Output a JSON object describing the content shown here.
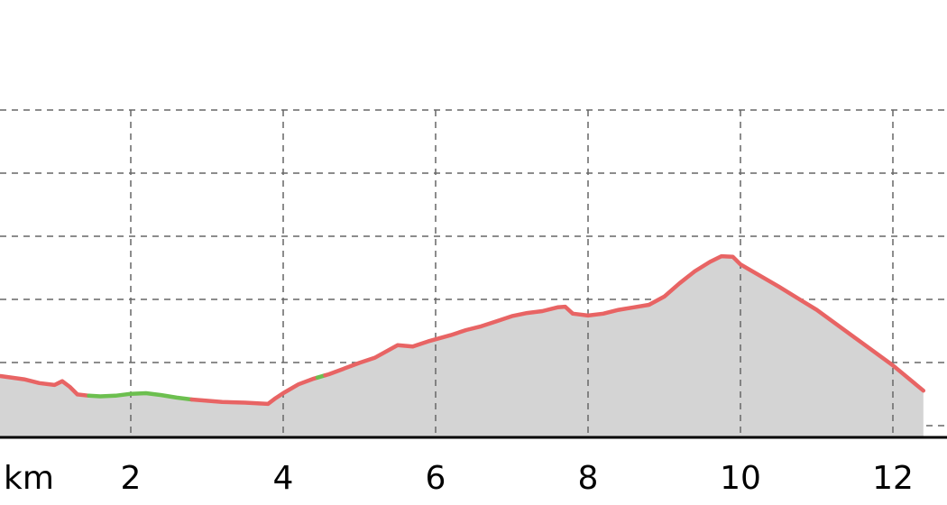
{
  "chart_data": {
    "type": "area",
    "title": "",
    "xlabel": "",
    "ylabel": "",
    "x_unit": "km",
    "xlim": [
      0.0,
      12.4
    ],
    "x_ticks": [
      2,
      4,
      6,
      8,
      10,
      12
    ],
    "x_tick_labels": [
      "2",
      "4",
      "6",
      "8",
      "10",
      "12"
    ],
    "y_gridlines": 6,
    "grid": "dashed",
    "fill_color": "#d4d4d4",
    "colors": {
      "primary_line": "#e86464",
      "secondary_segment": "#6cbf4f",
      "grid": "#666666",
      "axis": "#000000"
    },
    "segment_colors": [
      {
        "x_start": 0.0,
        "x_end": 1.45,
        "color": "primary_line"
      },
      {
        "x_start": 1.45,
        "x_end": 2.8,
        "color": "secondary_segment"
      },
      {
        "x_start": 2.8,
        "x_end": 4.45,
        "color": "primary_line"
      },
      {
        "x_start": 4.45,
        "x_end": 4.55,
        "color": "secondary_segment"
      },
      {
        "x_start": 4.55,
        "x_end": 12.4,
        "color": "primary_line"
      }
    ],
    "series": [
      {
        "x": [
          0.0,
          0.3,
          0.6,
          0.8,
          1.0,
          1.1,
          1.2,
          1.3,
          1.45,
          1.6,
          1.8,
          2.0,
          2.2,
          2.4,
          2.6,
          2.8,
          3.0,
          3.2,
          3.5,
          3.8,
          3.9,
          4.0,
          4.2,
          4.4,
          4.6,
          4.8,
          5.0,
          5.2,
          5.5,
          5.7,
          5.9,
          6.2,
          6.4,
          6.6,
          6.8,
          7.0,
          7.2,
          7.4,
          7.6,
          7.7,
          7.8,
          8.0,
          8.2,
          8.4,
          8.6,
          8.8,
          9.0,
          9.2,
          9.4,
          9.6,
          9.75,
          9.9,
          10.0,
          10.5,
          11.0,
          11.5,
          12.0,
          12.4
        ],
        "y": [
          27.9,
          27.7,
          27.2,
          26.6,
          26.3,
          26.9,
          26.0,
          24.8,
          24.6,
          24.5,
          24.6,
          24.9,
          25.0,
          24.7,
          24.3,
          24.0,
          23.8,
          23.6,
          23.5,
          23.3,
          24.2,
          25.0,
          26.4,
          27.3,
          28.0,
          28.9,
          29.8,
          30.6,
          32.6,
          32.4,
          33.2,
          34.2,
          35.0,
          35.6,
          36.4,
          37.2,
          37.7,
          38.0,
          38.6,
          38.7,
          37.6,
          37.3,
          37.6,
          38.2,
          38.6,
          39.0,
          40.3,
          42.4,
          44.3,
          45.8,
          46.7,
          46.6,
          45.4,
          41.9,
          38.2,
          33.8,
          29.4,
          25.4
        ]
      }
    ]
  }
}
